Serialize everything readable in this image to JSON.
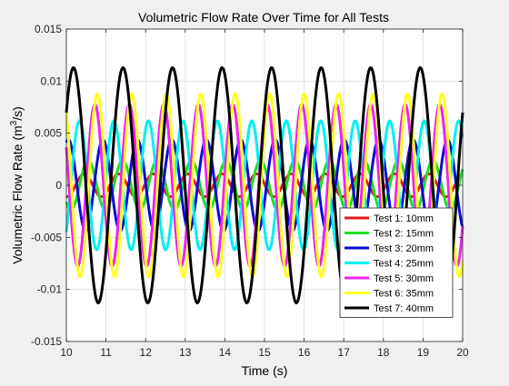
{
  "chart_data": {
    "type": "line",
    "title": "Volumetric Flow Rate Over Time for All Tests",
    "xlabel": "Time (s)",
    "ylabel_main": "Volumetric Flow Rate (m",
    "ylabel_sup": "3",
    "ylabel_end": "/s)",
    "xlim": [
      10,
      20
    ],
    "ylim": [
      -0.015,
      0.015
    ],
    "grid": true,
    "legend_position": "bottom-right",
    "x_ticks": [
      10,
      11,
      12,
      13,
      14,
      15,
      16,
      17,
      18,
      19,
      20
    ],
    "x_tick_labels": [
      "10",
      "11",
      "12",
      "13",
      "14",
      "15",
      "16",
      "17",
      "18",
      "19",
      "20"
    ],
    "y_ticks": [
      -0.015,
      -0.01,
      -0.005,
      0,
      0.005,
      0.01,
      0.015
    ],
    "y_tick_labels": [
      "-0.015",
      "-0.01",
      "-0.005",
      "0",
      "0.005",
      "0.01",
      "0.015"
    ],
    "sample_x": [
      10.0,
      10.1,
      10.2,
      10.3,
      10.4,
      10.5,
      10.6,
      10.7,
      10.8,
      10.9,
      11.0,
      11.1,
      11.2,
      11.3,
      11.4,
      11.5,
      11.6,
      11.7,
      11.8,
      11.9,
      12.0,
      12.1,
      12.2,
      12.3,
      12.4,
      12.5,
      12.6,
      12.7,
      12.8,
      12.9,
      13.0,
      13.1,
      13.2,
      13.3,
      13.4,
      13.5,
      13.6,
      13.7,
      13.8,
      13.9,
      14.0,
      14.1,
      14.2,
      14.3,
      14.4,
      14.5,
      14.6,
      14.7,
      14.8,
      14.9,
      15.0,
      15.1,
      15.2,
      15.3,
      15.4,
      15.5,
      15.6,
      15.7,
      15.8,
      15.9,
      16.0,
      16.1,
      16.2,
      16.3,
      16.4,
      16.5,
      16.6,
      16.7,
      16.8,
      16.9,
      17.0,
      17.1,
      17.2,
      17.3,
      17.4,
      17.5,
      17.6,
      17.7,
      17.8,
      17.9,
      18.0,
      18.1,
      18.2,
      18.3,
      18.4,
      18.5,
      18.6,
      18.7,
      18.8,
      18.9,
      19.0,
      19.1,
      19.2,
      19.3,
      19.4,
      19.5,
      19.6,
      19.7,
      19.8,
      19.9,
      20.0
    ],
    "series": [
      {
        "name": "Test 1: 10mm",
        "color": "#e41a1c",
        "amplitude": 0.0011,
        "period": 0.87,
        "peak_time": 10.45
      },
      {
        "name": "Test 2: 15mm",
        "color": "#22dd22",
        "amplitude": 0.0024,
        "period": 0.87,
        "peak_time": 10.55
      },
      {
        "name": "Test 3: 20mm",
        "color": "#0a0ad2",
        "amplitude": 0.0044,
        "period": 0.87,
        "peak_time": 10.05
      },
      {
        "name": "Test 4: 25mm",
        "color": "#00f0f0",
        "amplitude": 0.0062,
        "period": 0.87,
        "peak_time": 11.2
      },
      {
        "name": "Test 5: 30mm",
        "color": "#ee22ee",
        "amplitude": 0.0078,
        "period": 0.87,
        "peak_time": 10.72
      },
      {
        "name": "Test 6: 35mm",
        "color": "#ffff22",
        "amplitude": 0.0088,
        "period": 0.87,
        "peak_time": 10.78
      },
      {
        "name": "Test 7: 40mm",
        "color": "#000000",
        "amplitude": 0.0113,
        "period": 1.25,
        "peak_time": 10.18
      }
    ]
  }
}
